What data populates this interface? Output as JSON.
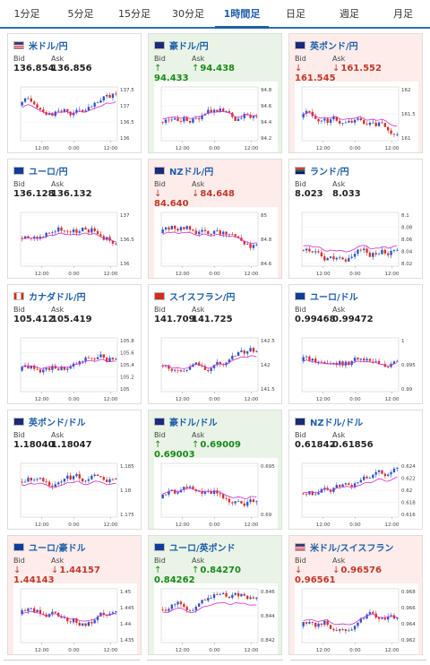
{
  "tabs": [
    {
      "label": "1分足",
      "active": false
    },
    {
      "label": "5分足",
      "active": false
    },
    {
      "label": "15分足",
      "active": false
    },
    {
      "label": "30分足",
      "active": false
    },
    {
      "label": "1時間足",
      "active": true
    },
    {
      "label": "日足",
      "active": false
    },
    {
      "label": "週足",
      "active": false
    },
    {
      "label": "月足",
      "active": false
    }
  ],
  "bid_label": "Bid",
  "ask_label": "Ask",
  "colors": {
    "up": "#1a8a1a",
    "down": "#c0392b",
    "link": "#1f5fa8",
    "bull": "#2f55c8",
    "bear": "#d8322a",
    "ma": "#d02bd0"
  },
  "cards": [
    {
      "pair": "米ドル/円",
      "flag": "us",
      "direction": "neutral",
      "bid": "136.854",
      "ask": "136.856",
      "chart": {
        "y_ticks": [
          "137.5",
          "137",
          "136.5",
          "136"
        ],
        "x_ticks": [
          "12:00",
          "0:00",
          "12:00"
        ]
      }
    },
    {
      "pair": "豪ドル/円",
      "flag": "au",
      "direction": "up",
      "bid": "94.433",
      "ask": "94.438",
      "chart": {
        "y_ticks": [
          "94.8",
          "94.6",
          "94.4",
          "94.2"
        ],
        "x_ticks": [
          "12:00",
          "0:00",
          "12:00"
        ]
      }
    },
    {
      "pair": "英ポンド/円",
      "flag": "gb",
      "direction": "down",
      "bid": "161.545",
      "ask": "161.552",
      "chart": {
        "y_ticks": [
          "162",
          "161.5",
          "161"
        ],
        "x_ticks": [
          "12:00",
          "0:00",
          "12:00"
        ]
      }
    },
    {
      "pair": "ユーロ/円",
      "flag": "eu",
      "direction": "neutral",
      "bid": "136.128",
      "ask": "136.132",
      "chart": {
        "y_ticks": [
          "137",
          "136.5",
          "136"
        ],
        "x_ticks": [
          "12:00",
          "0:00",
          "12:00"
        ]
      }
    },
    {
      "pair": "NZドル/円",
      "flag": "nz",
      "direction": "down",
      "bid": "84.640",
      "ask": "84.648",
      "chart": {
        "y_ticks": [
          "85",
          "84.8",
          "84.6"
        ],
        "x_ticks": [
          "12:00",
          "0:00",
          "12:00"
        ]
      }
    },
    {
      "pair": "ランド/円",
      "flag": "za",
      "direction": "neutral",
      "bid": "8.023",
      "ask": "8.033",
      "chart": {
        "y_ticks": [
          "8.1",
          "8.08",
          "8.06",
          "8.04",
          "8.02"
        ],
        "x_ticks": [
          "12:00",
          "0:00",
          "12:00"
        ]
      }
    },
    {
      "pair": "カナダドル/円",
      "flag": "ca",
      "direction": "neutral",
      "bid": "105.412",
      "ask": "105.419",
      "chart": {
        "y_ticks": [
          "105.8",
          "105.6",
          "105.4",
          "105.2",
          "105"
        ],
        "x_ticks": [
          "12:00",
          "0:00",
          "12:00"
        ]
      }
    },
    {
      "pair": "スイスフラン/円",
      "flag": "ch",
      "direction": "neutral",
      "bid": "141.709",
      "ask": "141.725",
      "chart": {
        "y_ticks": [
          "142.5",
          "142",
          "141.5"
        ],
        "x_ticks": [
          "12:00",
          "0:00",
          "12:00"
        ]
      }
    },
    {
      "pair": "ユーロ/ドル",
      "flag": "eu-us",
      "direction": "neutral",
      "bid": "0.99468",
      "ask": "0.99472",
      "chart": {
        "y_ticks": [
          "1",
          "0.995",
          "0.99"
        ],
        "x_ticks": [
          "12:00",
          "0:00",
          "12:00"
        ]
      }
    },
    {
      "pair": "英ポンド/ドル",
      "flag": "gb-us",
      "direction": "neutral",
      "bid": "1.18040",
      "ask": "1.18047",
      "chart": {
        "y_ticks": [
          "1.185",
          "1.18",
          "1.175"
        ],
        "x_ticks": [
          "12:00",
          "0:00",
          "12:00"
        ]
      }
    },
    {
      "pair": "豪ドル/ドル",
      "flag": "au-us",
      "direction": "up",
      "bid": "0.69003",
      "ask": "0.69009",
      "chart": {
        "y_ticks": [
          "0.695",
          "0.69"
        ],
        "x_ticks": [
          "12:00",
          "0:00",
          "12:00"
        ]
      }
    },
    {
      "pair": "NZドル/ドル",
      "flag": "nz-us",
      "direction": "neutral",
      "bid": "0.61842",
      "ask": "0.61856",
      "chart": {
        "y_ticks": [
          "0.624",
          "0.622",
          "0.62",
          "0.618",
          "0.616"
        ],
        "x_ticks": [
          "12:00",
          "0:00",
          "12:00"
        ]
      }
    },
    {
      "pair": "ユーロ/豪ドル",
      "flag": "eu-au",
      "direction": "down",
      "bid": "1.44143",
      "ask": "1.44157",
      "chart": {
        "y_ticks": [
          "1.45",
          "1.445",
          "1.44",
          "1.435"
        ],
        "x_ticks": [
          "12:00",
          "0:00",
          "12:00"
        ]
      }
    },
    {
      "pair": "ユーロ/英ポンド",
      "flag": "eu-gb",
      "direction": "up",
      "bid": "0.84262",
      "ask": "0.84270",
      "chart": {
        "y_ticks": [
          "0.846",
          "0.844",
          "0.842"
        ],
        "x_ticks": [
          "12:00",
          "0:00",
          "12:00"
        ]
      }
    },
    {
      "pair": "米ドル/スイスフラン",
      "flag": "us-ch",
      "direction": "down",
      "bid": "0.96561",
      "ask": "0.96576",
      "chart": {
        "y_ticks": [
          "0.968",
          "0.966",
          "0.964",
          "0.962"
        ],
        "x_ticks": [
          "12:00",
          "0:00",
          "12:00"
        ]
      }
    }
  ]
}
